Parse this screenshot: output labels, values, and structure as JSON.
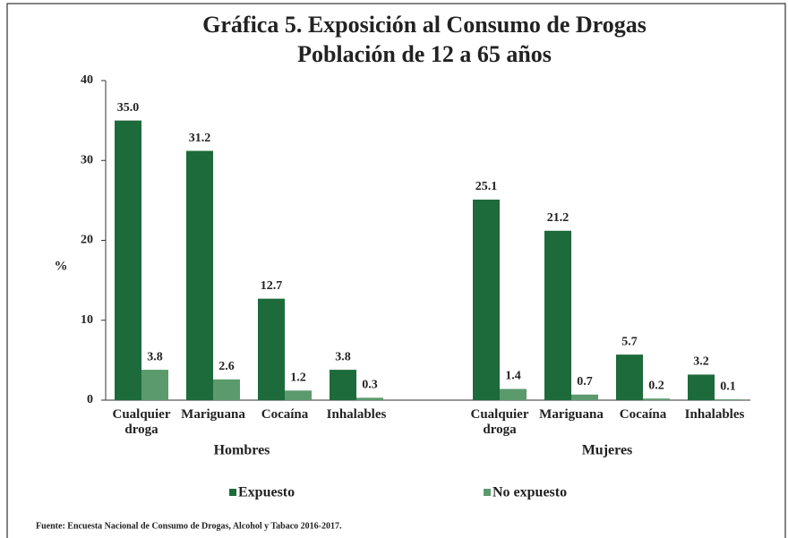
{
  "chart_data": {
    "type": "bar",
    "title": "Gráfica 5. Exposición al Consumo de Drogas",
    "subtitle": "Población de 12 a 65 años",
    "y_label": "%",
    "categories": [
      "Cualquier droga",
      "Mariguana",
      "Cocaína",
      "Inhalables",
      null,
      "Cualquier droga",
      "Mariguana",
      "Cocaína",
      "Inhalables"
    ],
    "groups": [
      "Hombres",
      "Mujeres"
    ],
    "series": [
      {
        "name": "Expuesto",
        "color": "#1d6a3b",
        "values": [
          35.0,
          31.2,
          12.7,
          3.8,
          null,
          25.1,
          21.2,
          5.7,
          3.2
        ],
        "value_labels": [
          "35.0",
          "31.2",
          "12.7",
          "3.8",
          null,
          "25.1",
          "21.2",
          "5.7",
          "3.2"
        ]
      },
      {
        "name": "No expuesto",
        "color": "#5b9a6d",
        "values": [
          3.8,
          2.6,
          1.2,
          0.3,
          null,
          1.4,
          0.7,
          0.2,
          0.1
        ],
        "value_labels": [
          "3.8",
          "2.6",
          "1.2",
          "0.3",
          null,
          "1.4",
          "0.7",
          "0.2",
          "0.1"
        ]
      }
    ],
    "ylim": [
      0,
      40
    ],
    "yticks": [
      0,
      10,
      20,
      30,
      40
    ],
    "grid": false,
    "legend": "bottom",
    "source": "Fuente: Encuesta Nacional de Consumo de Drogas, Alcohol y Tabaco 2016-2017."
  }
}
